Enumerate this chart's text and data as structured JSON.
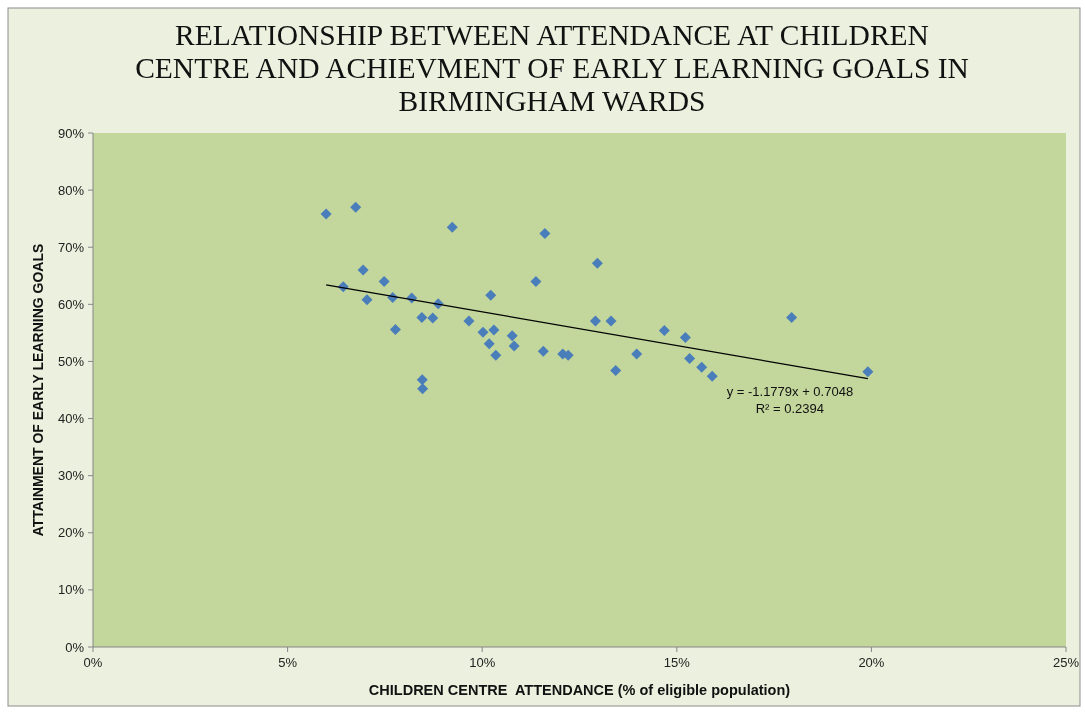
{
  "chart_data": {
    "type": "scatter",
    "title": "RELATIONSHIP BETWEEN ATTENDANCE AT CHILDREN\nCENTRE AND ACHIEVMENT OF EARLY LEARNING GOALS IN\nBIRMINGHAM WARDS",
    "xlabel": "CHILDREN CENTRE  ATTENDANCE (% of eligible population)",
    "ylabel": "ATTAINMENT OF EARLY LEARNING GOALS",
    "xlim": [
      0,
      0.25
    ],
    "xticks": [
      {
        "value": 0,
        "label": "0%"
      },
      {
        "value": 0.05,
        "label": "5%"
      },
      {
        "value": 0.1,
        "label": "10%"
      },
      {
        "value": 0.15,
        "label": "15%"
      },
      {
        "value": 0.2,
        "label": "20%"
      },
      {
        "value": 0.25,
        "label": "25%"
      }
    ],
    "ylim": [
      0,
      0.9
    ],
    "yticks": [
      {
        "value": 0,
        "label": "0%"
      },
      {
        "value": 0.1,
        "label": "10%"
      },
      {
        "value": 0.2,
        "label": "20%"
      },
      {
        "value": 0.3,
        "label": "30%"
      },
      {
        "value": 0.4,
        "label": "40%"
      },
      {
        "value": 0.5,
        "label": "50%"
      },
      {
        "value": 0.6,
        "label": "60%"
      },
      {
        "value": 0.7,
        "label": "70%"
      },
      {
        "value": 0.8,
        "label": "80%"
      },
      {
        "value": 0.9,
        "label": "90%"
      }
    ],
    "series": [
      {
        "color": "#4a7ebb",
        "marker": "diamond",
        "x": [
          0.0599,
          0.0675,
          0.0923,
          0.1161,
          0.1296,
          0.0694,
          0.0748,
          0.0643,
          0.1138,
          0.0704,
          0.077,
          0.0819,
          0.0887,
          0.1022,
          0.0777,
          0.0845,
          0.0873,
          0.0966,
          0.1002,
          0.103,
          0.1018,
          0.1035,
          0.1077,
          0.1082,
          0.1157,
          0.1207,
          0.1221,
          0.1291,
          0.1331,
          0.1343,
          0.1397,
          0.1468,
          0.1522,
          0.1533,
          0.1564,
          0.1591,
          0.1795,
          0.1991,
          0.0846,
          0.0847
        ],
        "values": [
          0.758,
          0.77,
          0.735,
          0.724,
          0.672,
          0.66,
          0.64,
          0.631,
          0.64,
          0.608,
          0.612,
          0.611,
          0.601,
          0.616,
          0.556,
          0.577,
          0.576,
          0.571,
          0.551,
          0.555,
          0.531,
          0.511,
          0.545,
          0.527,
          0.518,
          0.513,
          0.511,
          0.571,
          0.571,
          0.484,
          0.513,
          0.554,
          0.542,
          0.505,
          0.49,
          0.474,
          0.577,
          0.482,
          0.468,
          0.452
        ]
      },
      {
        "type": "line",
        "color": "#000000",
        "x": [
          0.0599,
          0.1991
        ],
        "values": [
          0.634,
          0.47
        ]
      }
    ],
    "annotations": [
      "y = -1.1779x + 0.7048",
      "R² = 0.2394"
    ]
  }
}
